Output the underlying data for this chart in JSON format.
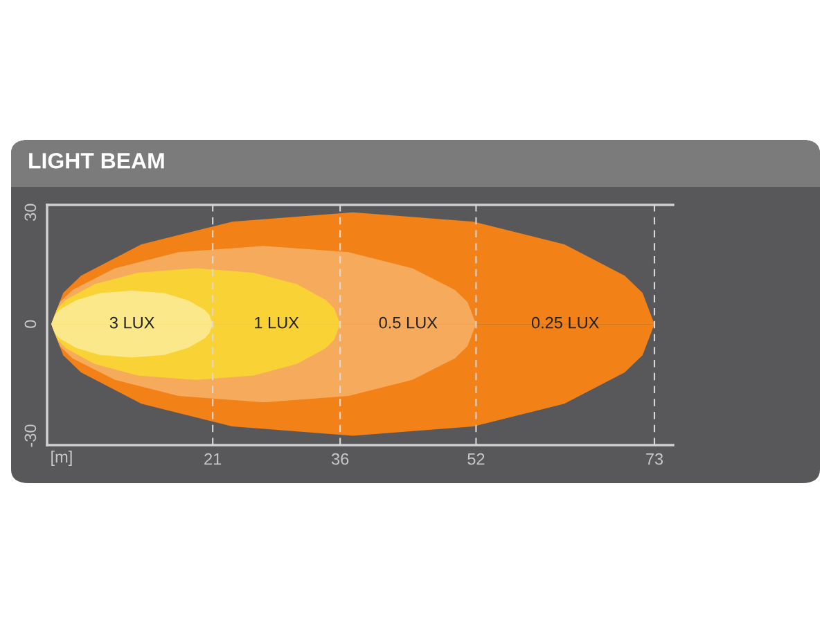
{
  "chart_data": {
    "type": "area",
    "title": "LIGHT BEAM",
    "xlabel": "[m]",
    "xlim": [
      1.5,
      75.2
    ],
    "xticks": [
      21,
      36,
      52,
      73
    ],
    "ylim": [
      -32.5,
      32
    ],
    "yticks": [
      -30,
      0,
      30
    ],
    "grid": false,
    "ref_lines": [
      {
        "axis": "x",
        "value": 21,
        "line_style": "dashed",
        "color": "#d9d9d9"
      },
      {
        "axis": "x",
        "value": 36,
        "line_style": "dashed",
        "color": "#d9d9d9"
      },
      {
        "axis": "x",
        "value": 52,
        "line_style": "dashed",
        "color": "#d9d9d9"
      },
      {
        "axis": "x",
        "value": 73,
        "line_style": "dashed",
        "color": "#d9d9d9"
      }
    ],
    "series": [
      {
        "name": "3 LUX",
        "color": "#fbe88a",
        "x": [
          2,
          2.4,
          3,
          4.9,
          7.7,
          11.5,
          15.3,
          18.1,
          20,
          20.6,
          21
        ],
        "values": [
          0,
          2.5,
          3.9,
          6.4,
          8.3,
          9,
          8.3,
          6.4,
          3.9,
          2.5,
          0
        ]
      },
      {
        "color": "#fbe88a",
        "x": [
          2,
          2.4,
          3,
          4.9,
          7.7,
          11.5,
          15.3,
          18.1,
          20,
          20.6,
          21
        ],
        "values": [
          0,
          -2.5,
          -3.9,
          -6.4,
          -8.3,
          -9,
          -8.3,
          -6.4,
          -3.9,
          -2.5,
          0
        ]
      },
      {
        "name": "1 LUX",
        "color": "#f9d235",
        "x": [
          2,
          2.7,
          3.7,
          7.1,
          12.2,
          19,
          25.8,
          30.9,
          34.3,
          35.3,
          36
        ],
        "values": [
          0,
          4.2,
          6.5,
          10.7,
          13.8,
          15,
          13.8,
          10.7,
          6.5,
          4.2,
          0
        ]
      },
      {
        "color": "#f9d235",
        "x": [
          2,
          2.7,
          3.7,
          7.1,
          12.2,
          19,
          25.8,
          30.9,
          34.3,
          35.3,
          36
        ],
        "values": [
          0,
          -4.2,
          -6.5,
          -10.7,
          -13.8,
          -15,
          -13.8,
          -10.7,
          -6.5,
          -4.2,
          0
        ]
      },
      {
        "name": "0.5 LUX",
        "color": "#f6ab5c",
        "x": [
          2,
          3,
          4.5,
          9.5,
          17,
          27,
          37,
          44.5,
          49.5,
          51,
          52
        ],
        "values": [
          0,
          5.9,
          9.2,
          15,
          19.3,
          21,
          19.3,
          15,
          9.2,
          5.9,
          0
        ]
      },
      {
        "color": "#f6ab5c",
        "x": [
          2,
          3,
          4.5,
          9.5,
          17,
          27,
          37,
          44.5,
          49.5,
          51,
          52
        ],
        "values": [
          0,
          -5.9,
          -9.2,
          -15,
          -19.3,
          -21,
          -19.3,
          -15,
          -9.2,
          -5.9,
          0
        ]
      },
      {
        "name": "0.25 LUX",
        "color": "#f28118",
        "x": [
          2,
          3.4,
          5.5,
          12.6,
          23.3,
          37.5,
          51.7,
          62.4,
          69.5,
          71.6,
          73
        ],
        "values": [
          0,
          8.4,
          13,
          21.4,
          27.5,
          30,
          27.5,
          21.4,
          13,
          8.4,
          0
        ]
      },
      {
        "color": "#f28118",
        "x": [
          2,
          3.4,
          5.5,
          12.6,
          23.3,
          37.5,
          51.7,
          62.4,
          69.5,
          71.6,
          73
        ],
        "values": [
          0,
          -8.4,
          -13,
          -21.4,
          -27.5,
          -30,
          -27.5,
          -21.4,
          -13,
          -8.4,
          0
        ]
      }
    ]
  }
}
